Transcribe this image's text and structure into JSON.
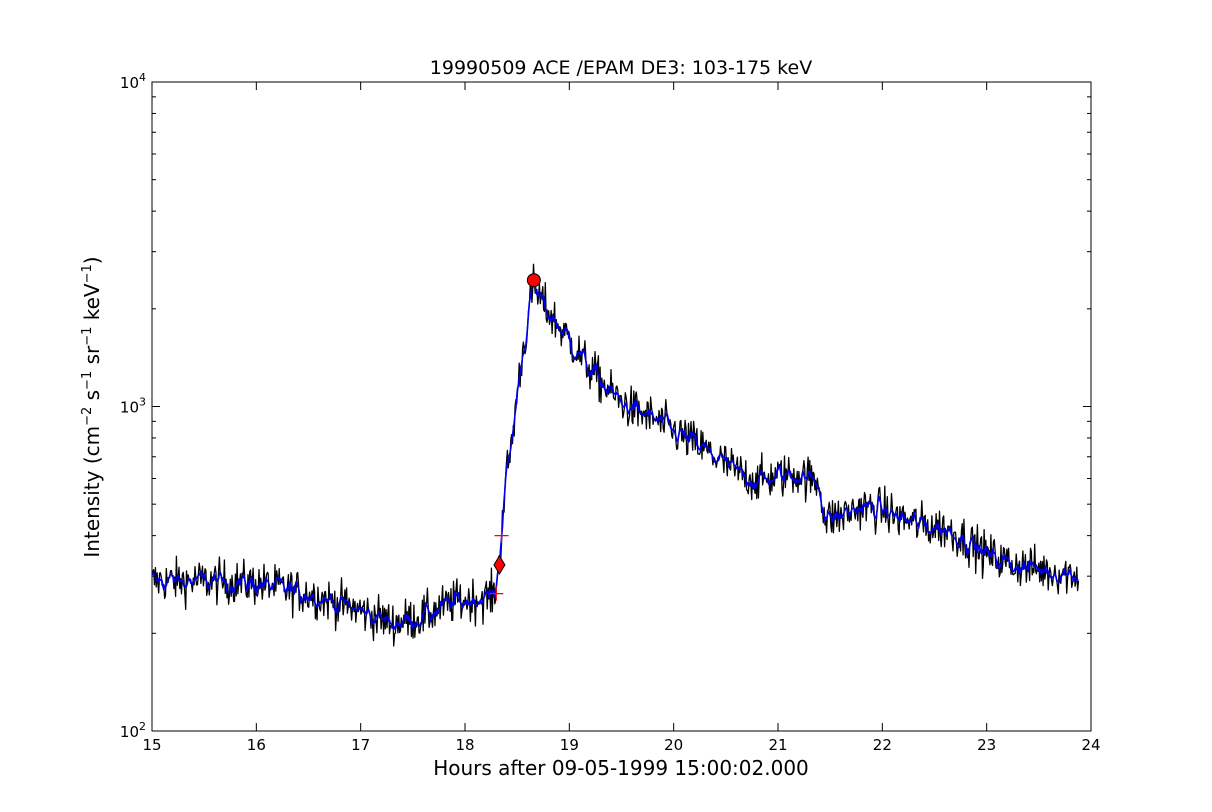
{
  "chart_data": {
    "type": "line",
    "title": "19990509 ACE /EPAM DE3: 103-175 keV",
    "xlabel": "Hours after 09-05-1999 15:00:02.000",
    "ylabel_parts": {
      "prefix": "Intensity (cm",
      "exp1": "−2",
      "s": " s",
      "exp2": "−1",
      "sr": " sr",
      "exp3": "−1",
      "kev": " keV",
      "exp4": "−1",
      "suffix": ")"
    },
    "xlim": [
      15,
      24
    ],
    "ylim": [
      100,
      10000
    ],
    "yscale": "log",
    "x_ticks": [
      {
        "value": 15,
        "label": "15"
      },
      {
        "value": 16,
        "label": "16"
      },
      {
        "value": 17,
        "label": "17"
      },
      {
        "value": 18,
        "label": "18"
      },
      {
        "value": 19,
        "label": "19"
      },
      {
        "value": 20,
        "label": "20"
      },
      {
        "value": 21,
        "label": "21"
      },
      {
        "value": 22,
        "label": "22"
      },
      {
        "value": 23,
        "label": "23"
      },
      {
        "value": 24,
        "label": "24"
      }
    ],
    "y_ticks": [
      {
        "value": 100,
        "base": "10",
        "exp": "2"
      },
      {
        "value": 1000,
        "base": "10",
        "exp": "3"
      },
      {
        "value": 10000,
        "base": "10",
        "exp": "4"
      }
    ],
    "grid": false,
    "legend": "none",
    "profile": [
      [
        15.0,
        290
      ],
      [
        15.5,
        290
      ],
      [
        16.0,
        285
      ],
      [
        16.5,
        265
      ],
      [
        17.0,
        235
      ],
      [
        17.3,
        215
      ],
      [
        17.6,
        225
      ],
      [
        17.9,
        250
      ],
      [
        18.2,
        258
      ],
      [
        18.28,
        262
      ],
      [
        18.33,
        330
      ],
      [
        18.36,
        470
      ],
      [
        18.4,
        620
      ],
      [
        18.45,
        780
      ],
      [
        18.5,
        1100
      ],
      [
        18.55,
        1450
      ],
      [
        18.6,
        1800
      ],
      [
        18.65,
        2350
      ],
      [
        18.7,
        2200
      ],
      [
        18.8,
        1950
      ],
      [
        19.0,
        1600
      ],
      [
        19.2,
        1300
      ],
      [
        19.4,
        1100
      ],
      [
        19.6,
        980
      ],
      [
        19.8,
        920
      ],
      [
        20.0,
        840
      ],
      [
        20.2,
        770
      ],
      [
        20.4,
        700
      ],
      [
        20.6,
        630
      ],
      [
        20.8,
        590
      ],
      [
        21.0,
        610
      ],
      [
        21.2,
        620
      ],
      [
        21.4,
        580
      ],
      [
        21.45,
        450
      ],
      [
        21.6,
        460
      ],
      [
        21.8,
        490
      ],
      [
        22.0,
        480
      ],
      [
        22.2,
        450
      ],
      [
        22.4,
        430
      ],
      [
        22.6,
        420
      ],
      [
        22.8,
        390
      ],
      [
        23.0,
        350
      ],
      [
        23.2,
        330
      ],
      [
        23.4,
        320
      ],
      [
        23.6,
        310
      ],
      [
        23.85,
        305
      ]
    ],
    "series": [
      {
        "style": "raw",
        "color": "#000000",
        "noise": 0.12
      },
      {
        "style": "smoothed",
        "color": "#0000ee",
        "noise": 0.06
      }
    ],
    "markers": [
      {
        "type": "circle",
        "x": 18.66,
        "y": 2450,
        "color": "#ff0000"
      },
      {
        "type": "diamond",
        "x": 18.33,
        "y": 325,
        "color": "#ff0000"
      },
      {
        "type": "plus",
        "x": 18.35,
        "y": 400,
        "color": "#ff0000"
      },
      {
        "type": "plus",
        "x": 18.3,
        "y": 265,
        "color": "#ff0000"
      }
    ]
  }
}
